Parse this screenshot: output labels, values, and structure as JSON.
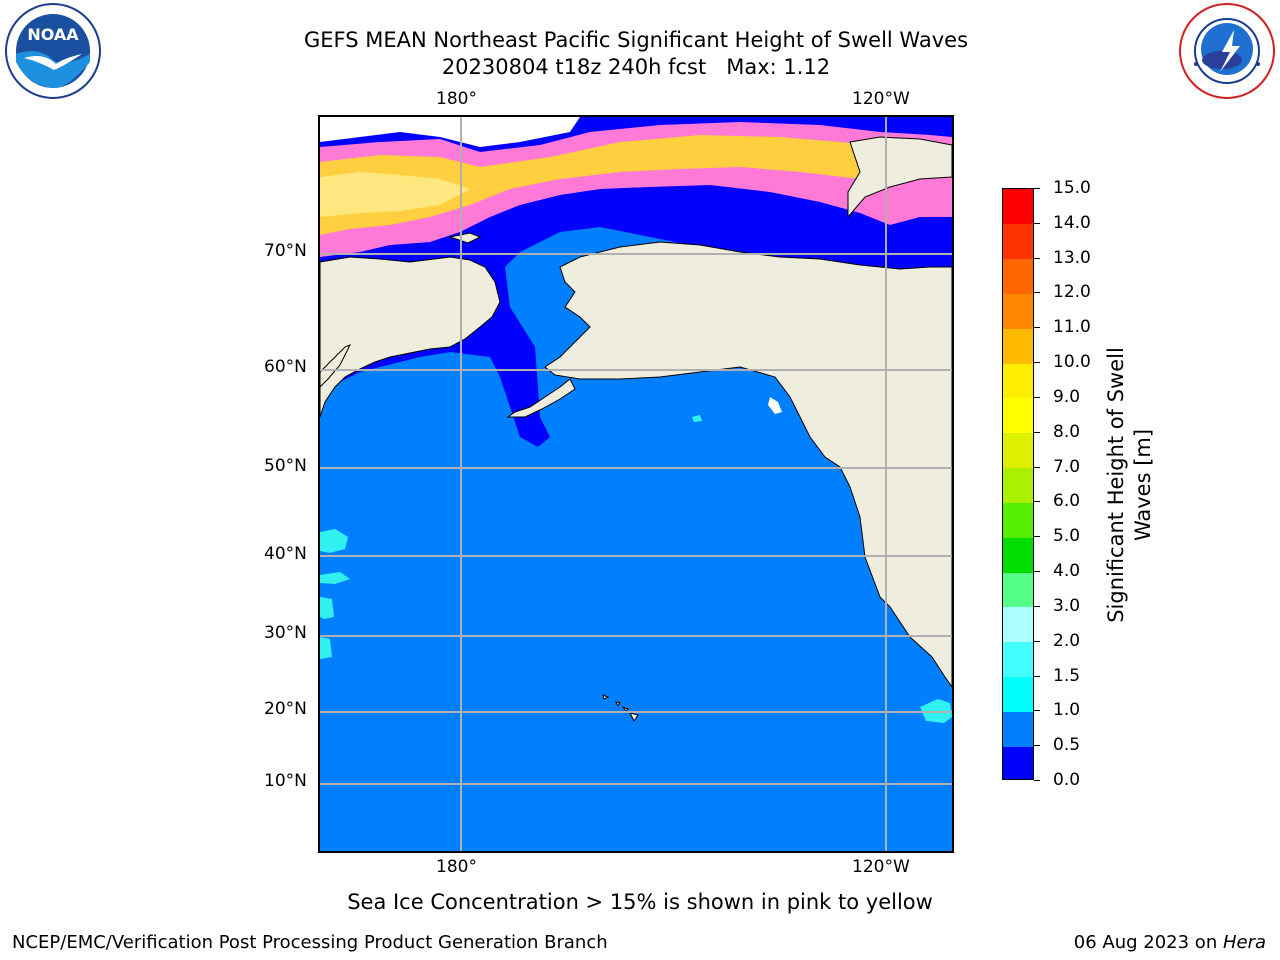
{
  "header": {
    "title_line1": "GEFS MEAN Northeast Pacific Significant Height of Swell Waves",
    "title_line2": "20230804 t18z 240h fcst   Max: 1.12"
  },
  "logos": {
    "left": {
      "name": "NOAA",
      "text": "NOAA",
      "ring_text": "NATIONAL OCEANIC AND ATMOSPHERIC ADMINISTRATION · U.S. DEPARTMENT OF COMMERCE"
    },
    "right": {
      "name": "National Weather Service",
      "ring_text": "NATIONAL WEATHER SERVICE"
    }
  },
  "map": {
    "lon_labels": [
      "180°",
      "120°W"
    ],
    "lat_labels": [
      "70°N",
      "60°N",
      "50°N",
      "40°N",
      "30°N",
      "20°N",
      "10°N"
    ],
    "colors": {
      "land": "#efedde",
      "ocean": "#0080ff",
      "low_swell": "#0000ff",
      "light_swell": "#00ffff",
      "ice_pink": "#ff6ad0",
      "ice_yellow": "#ffd43d",
      "grid": "#b0b0b0"
    }
  },
  "colorbar": {
    "title_line1": "Significant Height of Swell",
    "title_line2": "Waves [m]",
    "tick_labels": [
      "0.0",
      "0.5",
      "1.0",
      "1.5",
      "2.0",
      "3.0",
      "4.0",
      "5.0",
      "6.0",
      "7.0",
      "8.0",
      "9.0",
      "10.0",
      "11.0",
      "12.0",
      "13.0",
      "14.0",
      "15.0"
    ],
    "colors": [
      "#0000ff",
      "#0080ff",
      "#00ffff",
      "#44ffff",
      "#aaffff",
      "#55ff88",
      "#00dd00",
      "#55ee00",
      "#aaf000",
      "#ddf000",
      "#ffff00",
      "#ffee00",
      "#ffbb00",
      "#ff8800",
      "#ff6600",
      "#ff3300",
      "#ff0000"
    ]
  },
  "footer": {
    "note": "Sea Ice Concentration > 15% is shown in pink to yellow",
    "left": "NCEP/EMC/Verification Post Processing Product Generation Branch",
    "right_date": "06 Aug 2023 on ",
    "right_host": "Hera"
  }
}
